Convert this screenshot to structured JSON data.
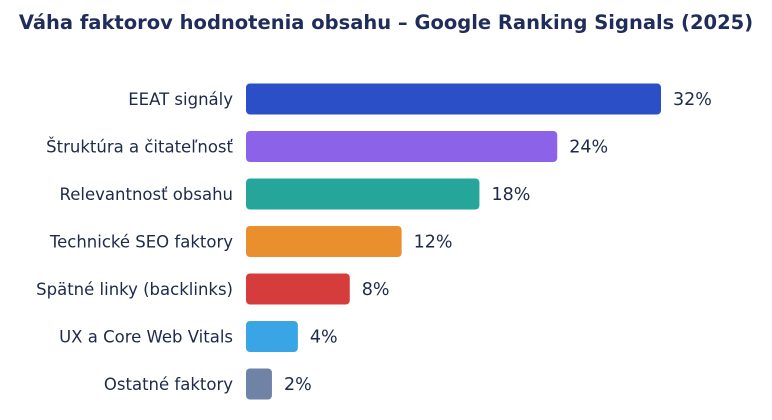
{
  "chart_data": {
    "type": "bar",
    "orientation": "horizontal",
    "title": "Váha faktorov hodnotenia obsahu – Google Ranking Signals (2025)",
    "xlabel": "",
    "ylabel": "",
    "xlim": [
      0,
      32
    ],
    "grid": false,
    "legend": "none",
    "value_suffix": "%",
    "categories": [
      "EEAT signály",
      "Štruktúra a čitateľnosť",
      "Relevantnosť obsahu",
      "Technické SEO faktory",
      "Spätné linky (backlinks)",
      "UX a Core Web Vitals",
      "Ostatné faktory"
    ],
    "values": [
      32,
      24,
      18,
      12,
      8,
      4,
      2
    ],
    "value_labels": [
      "32%",
      "24%",
      "18%",
      "12%",
      "8%",
      "4%",
      "2%"
    ],
    "colors": [
      "#2b4fc6",
      "#8b62e8",
      "#26a59a",
      "#e98f2e",
      "#d63c3c",
      "#3aa5e4",
      "#6e83a6"
    ]
  }
}
